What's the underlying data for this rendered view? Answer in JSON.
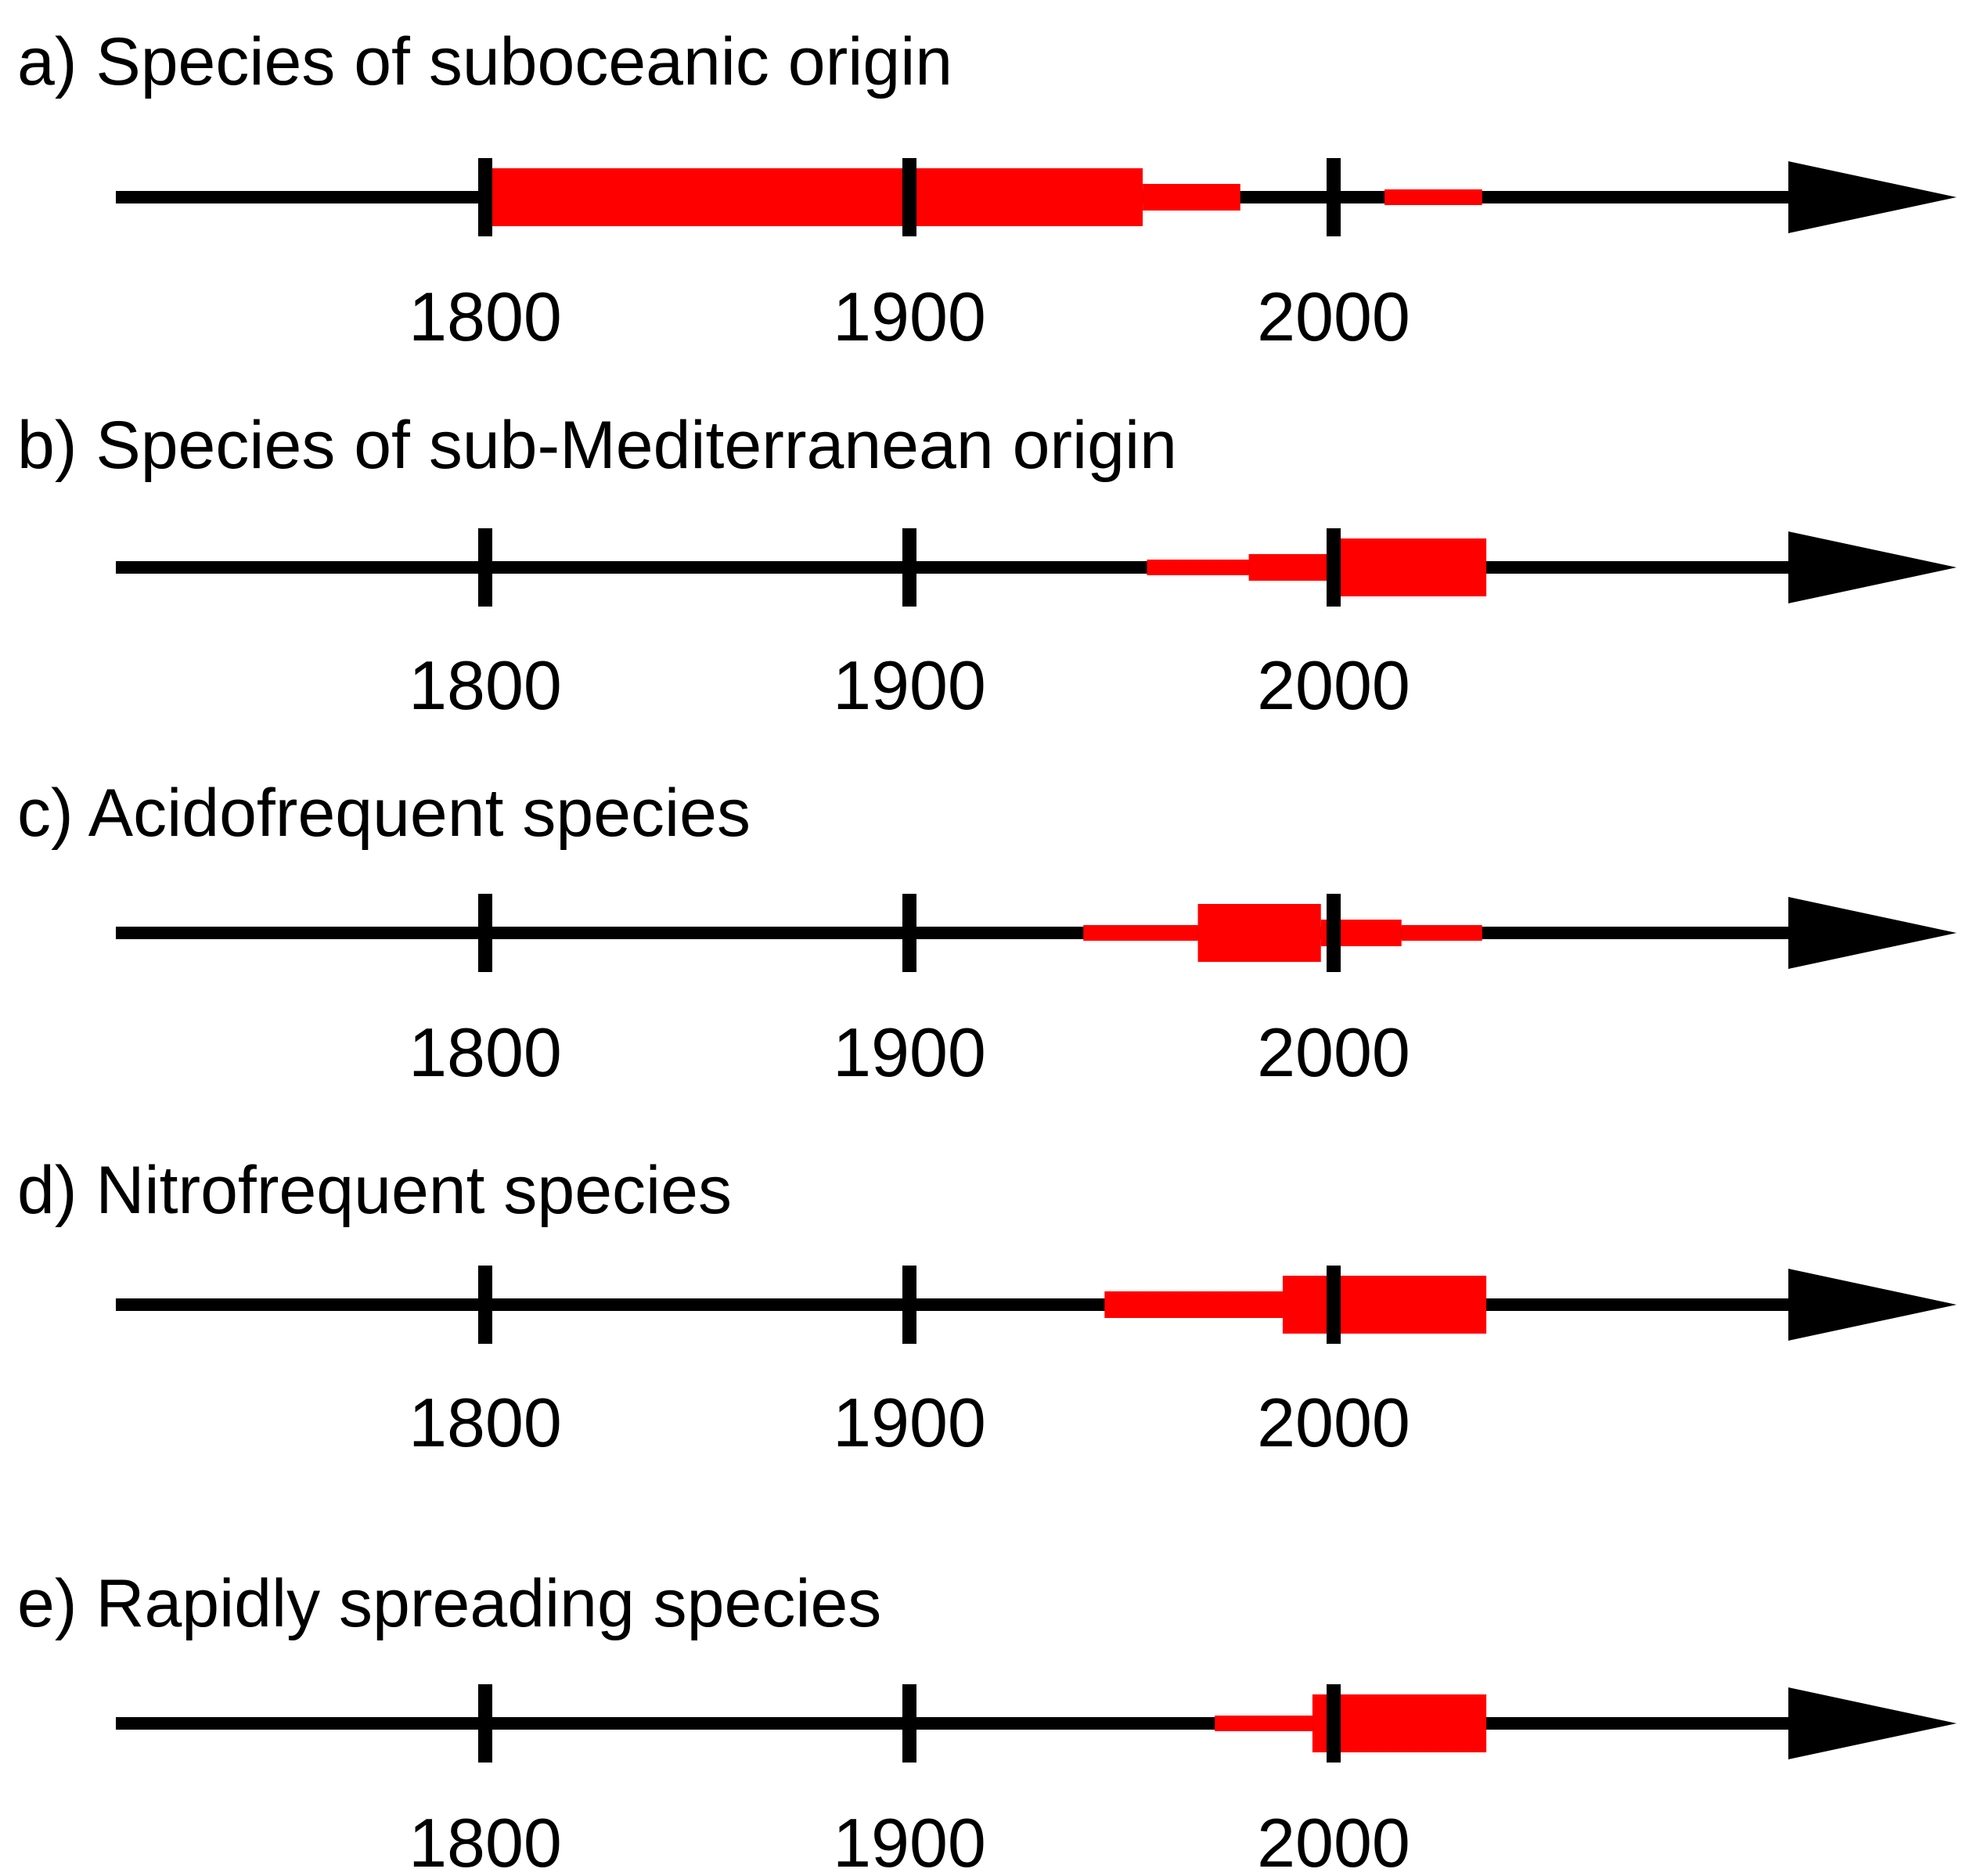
{
  "colors": {
    "axis": "#000000",
    "period": "#ff0000"
  },
  "chart_data": [
    {
      "type": "timeline",
      "title": "a) Species of suboceanic origin",
      "ticks": [
        1800,
        1900,
        2000
      ],
      "periods": [
        {
          "start": 1800,
          "end": 1955,
          "level": "high"
        },
        {
          "start": 1955,
          "end": 1978,
          "level": "medium"
        },
        {
          "start": 2012,
          "end": 2035,
          "level": "low"
        }
      ]
    },
    {
      "type": "timeline",
      "title": "b) Species of sub-Mediterranean origin",
      "ticks": [
        1800,
        1900,
        2000
      ],
      "periods": [
        {
          "start": 1956,
          "end": 1980,
          "level": "low"
        },
        {
          "start": 1980,
          "end": 2000,
          "level": "medium"
        },
        {
          "start": 2000,
          "end": 2036,
          "level": "high"
        }
      ]
    },
    {
      "type": "timeline",
      "title": "c) Acidofrequent species",
      "ticks": [
        1800,
        1900,
        2000
      ],
      "periods": [
        {
          "start": 1941,
          "end": 1968,
          "level": "low"
        },
        {
          "start": 1968,
          "end": 1997,
          "level": "high"
        },
        {
          "start": 1997,
          "end": 2016,
          "level": "medium"
        },
        {
          "start": 2016,
          "end": 2035,
          "level": "low"
        }
      ]
    },
    {
      "type": "timeline",
      "title": "d) Nitrofrequent species",
      "ticks": [
        1800,
        1900,
        2000
      ],
      "periods": [
        {
          "start": 1946,
          "end": 1988,
          "level": "medium"
        },
        {
          "start": 1988,
          "end": 2036,
          "level": "high"
        }
      ]
    },
    {
      "type": "timeline",
      "title": "e) Rapidly spreading species",
      "ticks": [
        1800,
        1900,
        2000
      ],
      "periods": [
        {
          "start": 1972,
          "end": 1995,
          "level": "low"
        },
        {
          "start": 1995,
          "end": 2036,
          "level": "high"
        }
      ]
    }
  ]
}
